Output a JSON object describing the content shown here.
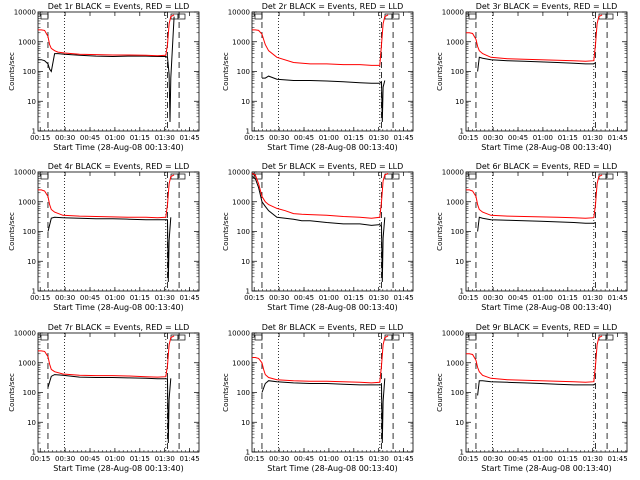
{
  "figure": {
    "xlabel": "Start Time (28-Aug-08 00:13:40)",
    "ylabel": "Counts/sec",
    "xticks": [
      "00:15",
      "00:30",
      "00:45",
      "01:00",
      "01:15",
      "01:30",
      "01:45"
    ],
    "yticks": [
      "1",
      "10",
      "100",
      "1000",
      "10000"
    ],
    "colors": {
      "events": "#000000",
      "lld": "#ff0000"
    }
  },
  "chart_data": [
    {
      "type": "line",
      "title": "Det 1r BLACK = Events, RED = LLD",
      "xlabel": "Start Time (28-Aug-08 00:13:40)",
      "ylabel": "Counts/sec",
      "x_unit": "minutes since 00:13:40",
      "xlim": [
        0,
        97
      ],
      "ylim": [
        1,
        10000
      ],
      "yscale": "log",
      "series": [
        {
          "name": "BLACK = Events",
          "x": [
            0,
            2,
            4,
            6,
            7,
            8,
            10,
            12,
            16,
            25,
            35,
            45,
            55,
            65,
            72,
            77,
            78,
            79,
            79.5,
            80,
            82
          ],
          "values": [
            250,
            250,
            230,
            180,
            120,
            100,
            400,
            400,
            380,
            350,
            330,
            320,
            330,
            330,
            320,
            320,
            300,
            80,
            2,
            60,
            7000
          ]
        },
        {
          "name": "RED = LLD",
          "x": [
            0,
            2,
            4,
            6,
            7,
            8,
            10,
            12,
            16,
            25,
            35,
            45,
            55,
            65,
            72,
            77,
            78,
            79,
            80,
            82
          ],
          "values": [
            2500,
            2500,
            2400,
            1500,
            800,
            600,
            500,
            450,
            420,
            380,
            370,
            360,
            360,
            350,
            340,
            350,
            800,
            4000,
            7000,
            8000
          ]
        }
      ],
      "vlines_dashed": [
        6,
        78,
        85
      ],
      "vlines_dotted": [
        16,
        77
      ]
    },
    {
      "type": "line",
      "title": "Det 2r BLACK = Events, RED = LLD",
      "xlabel": "Start Time (28-Aug-08 00:13:40)",
      "ylabel": "Counts/sec",
      "x_unit": "minutes since 00:13:40",
      "xlim": [
        0,
        97
      ],
      "ylim": [
        1,
        10000
      ],
      "yscale": "log",
      "series": [
        {
          "name": "BLACK = Events",
          "x": [
            6,
            8,
            10,
            15,
            25,
            35,
            45,
            55,
            65,
            72,
            77,
            78,
            78.5,
            79,
            80
          ],
          "values": [
            60,
            60,
            70,
            55,
            50,
            50,
            48,
            45,
            42,
            40,
            40,
            45,
            2,
            30,
            50
          ]
        },
        {
          "name": "RED = LLD",
          "x": [
            0,
            2,
            4,
            6,
            7,
            8,
            10,
            15,
            25,
            35,
            45,
            55,
            65,
            72,
            77,
            78,
            79,
            80,
            82
          ],
          "values": [
            2500,
            2500,
            2400,
            1800,
            1200,
            800,
            500,
            300,
            200,
            180,
            180,
            170,
            170,
            160,
            160,
            800,
            4000,
            7000,
            8000
          ]
        }
      ],
      "vlines_dashed": [
        6,
        78,
        85
      ],
      "vlines_dotted": [
        16,
        77
      ]
    },
    {
      "type": "line",
      "title": "Det 3r BLACK = Events, RED = LLD",
      "xlabel": "Start Time (28-Aug-08 00:13:40)",
      "ylabel": "Counts/sec",
      "x_unit": "minutes since 00:13:40",
      "xlim": [
        0,
        97
      ],
      "ylim": [
        1,
        10000
      ],
      "yscale": "log",
      "series": [
        {
          "name": "BLACK = Events",
          "x": [
            7,
            8,
            10,
            15,
            25,
            35,
            45,
            55,
            65,
            72,
            77,
            78
          ],
          "values": [
            100,
            300,
            280,
            250,
            230,
            220,
            210,
            200,
            190,
            180,
            180,
            200
          ]
        },
        {
          "name": "RED = LLD",
          "x": [
            0,
            2,
            4,
            6,
            7,
            8,
            10,
            15,
            25,
            35,
            45,
            55,
            65,
            72,
            77,
            78,
            79,
            80,
            82
          ],
          "values": [
            2000,
            2000,
            1900,
            1200,
            700,
            500,
            400,
            300,
            270,
            260,
            250,
            240,
            230,
            220,
            230,
            800,
            4000,
            7000,
            8000
          ]
        }
      ],
      "vlines_dashed": [
        6,
        78,
        85
      ],
      "vlines_dotted": [
        16,
        77
      ]
    },
    {
      "type": "line",
      "title": "Det 4r BLACK = Events, RED = LLD",
      "xlabel": "Start Time (28-Aug-08 00:13:40)",
      "ylabel": "Counts/sec",
      "x_unit": "minutes since 00:13:40",
      "xlim": [
        0,
        97
      ],
      "ylim": [
        1,
        10000
      ],
      "yscale": "log",
      "series": [
        {
          "name": "BLACK = Events",
          "x": [
            6,
            8,
            10,
            15,
            25,
            35,
            45,
            55,
            65,
            72,
            77,
            78,
            78.5,
            79,
            80
          ],
          "values": [
            100,
            280,
            300,
            290,
            280,
            270,
            270,
            260,
            250,
            250,
            250,
            250,
            2,
            50,
            300
          ]
        },
        {
          "name": "RED = LLD",
          "x": [
            0,
            2,
            4,
            6,
            7,
            8,
            10,
            15,
            25,
            35,
            45,
            55,
            65,
            72,
            77,
            78,
            79,
            80,
            82
          ],
          "values": [
            2500,
            2500,
            2300,
            1500,
            800,
            550,
            450,
            350,
            330,
            320,
            310,
            300,
            300,
            290,
            300,
            800,
            4000,
            7000,
            8000
          ]
        }
      ],
      "vlines_dashed": [
        6,
        78,
        85
      ],
      "vlines_dotted": [
        16,
        77
      ]
    },
    {
      "type": "line",
      "title": "Det 5r BLACK = Events, RED = LLD",
      "xlabel": "Start Time (28-Aug-08 00:13:40)",
      "ylabel": "Counts/sec",
      "x_unit": "minutes since 00:13:40",
      "xlim": [
        0,
        97
      ],
      "ylim": [
        1,
        10000
      ],
      "yscale": "log",
      "series": [
        {
          "name": "BLACK = Events",
          "x": [
            0,
            2,
            4,
            6,
            8,
            10,
            15,
            20,
            25,
            30,
            35,
            45,
            55,
            65,
            72,
            77,
            78,
            78.5,
            79,
            80
          ],
          "values": [
            7000,
            6000,
            3000,
            1000,
            700,
            500,
            300,
            280,
            260,
            230,
            230,
            200,
            180,
            180,
            160,
            170,
            150,
            2,
            60,
            300
          ]
        },
        {
          "name": "RED = LLD",
          "x": [
            0,
            2,
            4,
            6,
            8,
            10,
            15,
            20,
            25,
            30,
            35,
            45,
            55,
            65,
            72,
            77,
            78,
            79,
            80,
            82
          ],
          "values": [
            9000,
            8000,
            4000,
            1500,
            1000,
            800,
            600,
            500,
            400,
            380,
            370,
            350,
            320,
            300,
            280,
            300,
            1000,
            5000,
            8000,
            9000
          ]
        }
      ],
      "vlines_dashed": [
        6,
        78,
        85
      ],
      "vlines_dotted": [
        16,
        77
      ]
    },
    {
      "type": "line",
      "title": "Det 6r BLACK = Events, RED = LLD",
      "xlabel": "Start Time (28-Aug-08 00:13:40)",
      "ylabel": "Counts/sec",
      "x_unit": "minutes since 00:13:40",
      "xlim": [
        0,
        97
      ],
      "ylim": [
        1,
        10000
      ],
      "yscale": "log",
      "series": [
        {
          "name": "BLACK = Events",
          "x": [
            7,
            8,
            10,
            15,
            25,
            35,
            45,
            55,
            65,
            72,
            77,
            78
          ],
          "values": [
            100,
            300,
            280,
            250,
            240,
            230,
            220,
            210,
            200,
            190,
            190,
            200
          ]
        },
        {
          "name": "RED = LLD",
          "x": [
            0,
            2,
            4,
            6,
            7,
            8,
            10,
            15,
            25,
            35,
            45,
            55,
            65,
            72,
            77,
            78,
            79,
            80,
            82
          ],
          "values": [
            2500,
            2500,
            2300,
            1500,
            800,
            550,
            450,
            350,
            330,
            320,
            310,
            300,
            290,
            280,
            290,
            800,
            4000,
            7000,
            8000
          ]
        }
      ],
      "vlines_dashed": [
        6,
        78,
        85
      ],
      "vlines_dotted": [
        16,
        77
      ]
    },
    {
      "type": "line",
      "title": "Det 7r BLACK = Events, RED = LLD",
      "xlabel": "Start Time (28-Aug-08 00:13:40)",
      "ylabel": "Counts/sec",
      "x_unit": "minutes since 00:13:40",
      "xlim": [
        0,
        97
      ],
      "ylim": [
        1,
        10000
      ],
      "yscale": "log",
      "series": [
        {
          "name": "BLACK = Events",
          "x": [
            6,
            8,
            10,
            15,
            25,
            35,
            45,
            55,
            65,
            72,
            77,
            78,
            78.5,
            79,
            80
          ],
          "values": [
            150,
            350,
            400,
            380,
            330,
            320,
            320,
            310,
            300,
            290,
            290,
            280,
            2,
            60,
            300
          ]
        },
        {
          "name": "RED = LLD",
          "x": [
            0,
            2,
            4,
            6,
            7,
            8,
            10,
            15,
            25,
            35,
            45,
            55,
            65,
            72,
            77,
            78,
            79,
            80,
            82
          ],
          "values": [
            2500,
            2500,
            2400,
            1600,
            900,
            600,
            500,
            420,
            380,
            370,
            370,
            360,
            340,
            330,
            340,
            800,
            4000,
            7000,
            8000
          ]
        }
      ],
      "vlines_dashed": [
        6,
        78,
        85
      ],
      "vlines_dotted": [
        16,
        77
      ]
    },
    {
      "type": "line",
      "title": "Det 8r BLACK = Events, RED = LLD",
      "xlabel": "Start Time (28-Aug-08 00:13:40)",
      "ylabel": "Counts/sec",
      "x_unit": "minutes since 00:13:40",
      "xlim": [
        0,
        97
      ],
      "ylim": [
        1,
        10000
      ],
      "yscale": "log",
      "series": [
        {
          "name": "BLACK = Events",
          "x": [
            6,
            8,
            10,
            15,
            25,
            35,
            45,
            55,
            65,
            72,
            77,
            78,
            78.5,
            79,
            80
          ],
          "values": [
            100,
            200,
            250,
            230,
            210,
            200,
            200,
            190,
            180,
            180,
            180,
            180,
            2,
            50,
            300
          ]
        },
        {
          "name": "RED = LLD",
          "x": [
            0,
            2,
            4,
            6,
            7,
            8,
            10,
            15,
            25,
            35,
            45,
            55,
            65,
            72,
            77,
            78,
            79,
            80,
            82
          ],
          "values": [
            1500,
            1500,
            1400,
            1000,
            600,
            400,
            320,
            270,
            250,
            240,
            240,
            230,
            220,
            210,
            220,
            800,
            4000,
            7000,
            8000
          ]
        }
      ],
      "vlines_dashed": [
        6,
        78,
        85
      ],
      "vlines_dotted": [
        16,
        77
      ]
    },
    {
      "type": "line",
      "title": "Det 9r BLACK = Events, RED = LLD",
      "xlabel": "Start Time (28-Aug-08 00:13:40)",
      "ylabel": "Counts/sec",
      "x_unit": "minutes since 00:13:40",
      "xlim": [
        0,
        97
      ],
      "ylim": [
        1,
        10000
      ],
      "yscale": "log",
      "series": [
        {
          "name": "BLACK = Events",
          "x": [
            7,
            8,
            10,
            15,
            25,
            35,
            45,
            55,
            65,
            72,
            77,
            78
          ],
          "values": [
            80,
            250,
            250,
            230,
            220,
            210,
            200,
            190,
            180,
            180,
            180,
            200
          ]
        },
        {
          "name": "RED = LLD",
          "x": [
            0,
            2,
            4,
            6,
            7,
            8,
            10,
            15,
            25,
            35,
            45,
            55,
            65,
            72,
            77,
            78,
            79,
            80,
            82
          ],
          "values": [
            2000,
            2000,
            1900,
            1200,
            700,
            500,
            380,
            300,
            270,
            260,
            250,
            240,
            230,
            220,
            230,
            800,
            4000,
            7000,
            8000
          ]
        }
      ],
      "vlines_dashed": [
        6,
        78,
        85
      ],
      "vlines_dotted": [
        16,
        77
      ]
    }
  ]
}
